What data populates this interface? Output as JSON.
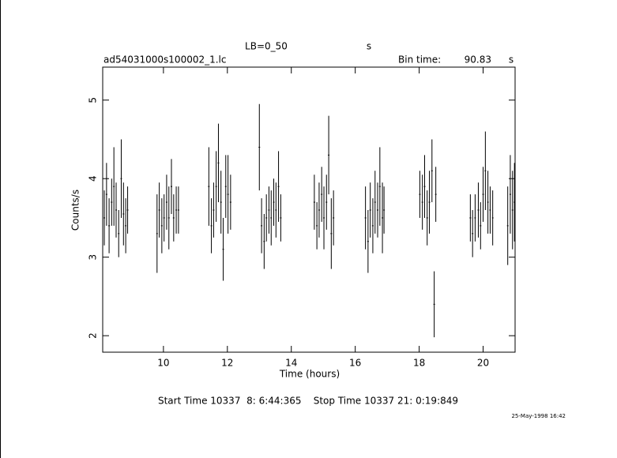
{
  "chart_data": {
    "type": "scatter",
    "title": "LB=0_50",
    "title_unit": "s",
    "subtitle": "ad54031000s100002_1.lc",
    "bin_time_label": "Bin time:",
    "bin_time": 90.83,
    "bin_time_unit": "s",
    "xlabel": "Time (hours)",
    "ylabel": "Counts/s",
    "footer": "Start Time 10337  8: 6:44:365    Stop Time 10337 21: 0:19:849",
    "timestamp": "25-May-1998 16:42",
    "xlim": [
      8.1,
      21.0
    ],
    "ylim": [
      1.79,
      5.42
    ],
    "xticks": [
      10,
      12,
      14,
      16,
      18,
      20
    ],
    "yticks": [
      2,
      3,
      4,
      5
    ],
    "series": [
      {
        "color": "#000000",
        "x": [
          8.15,
          8.22,
          8.3,
          8.38,
          8.45,
          8.52,
          8.6,
          8.68,
          8.75,
          8.82,
          8.88,
          9.8,
          9.87,
          9.95,
          10.02,
          10.1,
          10.17,
          10.25,
          10.32,
          10.4,
          10.47,
          11.42,
          11.5,
          11.57,
          11.65,
          11.72,
          11.8,
          11.87,
          11.95,
          12.02,
          12.1,
          13.0,
          13.07,
          13.15,
          13.22,
          13.3,
          13.37,
          13.45,
          13.52,
          13.6,
          13.67,
          14.72,
          14.8,
          14.87,
          14.95,
          15.02,
          15.1,
          15.17,
          15.25,
          15.32,
          16.32,
          16.4,
          16.47,
          16.55,
          16.62,
          16.7,
          16.77,
          16.85,
          16.9,
          18.02,
          18.1,
          18.17,
          18.25,
          18.32,
          18.4,
          18.47,
          18.52,
          19.6,
          19.67,
          19.75,
          19.85,
          19.92,
          20.0,
          20.07,
          20.15,
          20.22,
          20.3,
          20.77,
          20.85,
          20.92,
          20.98
        ],
        "values": [
          3.5,
          3.8,
          3.4,
          3.7,
          3.9,
          3.6,
          3.3,
          4.0,
          3.55,
          3.4,
          3.6,
          3.3,
          3.6,
          3.4,
          3.5,
          3.7,
          3.5,
          3.9,
          3.5,
          3.6,
          3.6,
          3.9,
          3.4,
          3.6,
          3.9,
          4.2,
          3.7,
          3.1,
          3.9,
          3.8,
          3.7,
          4.4,
          3.4,
          3.2,
          3.5,
          3.6,
          3.5,
          3.7,
          3.6,
          3.9,
          3.5,
          3.7,
          3.4,
          3.6,
          3.8,
          3.5,
          3.7,
          4.3,
          3.3,
          3.5,
          3.5,
          3.2,
          3.6,
          3.4,
          3.7,
          3.6,
          3.9,
          3.5,
          3.6,
          3.8,
          3.7,
          3.9,
          3.5,
          3.7,
          4.1,
          2.4,
          3.8,
          3.5,
          3.3,
          3.5,
          3.6,
          3.4,
          3.8,
          4.1,
          3.7,
          3.6,
          3.5,
          3.4,
          3.8,
          3.6,
          3.7
        ],
        "errors": [
          0.35,
          0.4,
          0.35,
          0.3,
          0.5,
          0.35,
          0.3,
          0.5,
          0.4,
          0.35,
          0.3,
          0.5,
          0.35,
          0.35,
          0.3,
          0.35,
          0.4,
          0.35,
          0.3,
          0.3,
          0.3,
          0.5,
          0.35,
          0.35,
          0.45,
          0.5,
          0.4,
          0.4,
          0.4,
          0.5,
          0.35,
          0.55,
          0.35,
          0.35,
          0.3,
          0.3,
          0.35,
          0.3,
          0.35,
          0.45,
          0.3,
          0.35,
          0.3,
          0.35,
          0.35,
          0.4,
          0.35,
          0.5,
          0.45,
          0.35,
          0.4,
          0.4,
          0.35,
          0.35,
          0.4,
          0.35,
          0.5,
          0.45,
          0.3,
          0.3,
          0.35,
          0.4,
          0.35,
          0.4,
          0.4,
          0.42,
          0.35,
          0.3,
          0.3,
          0.3,
          0.35,
          0.3,
          0.35,
          0.5,
          0.4,
          0.3,
          0.35,
          0.5,
          0.5,
          0.5,
          0.5
        ]
      }
    ]
  }
}
